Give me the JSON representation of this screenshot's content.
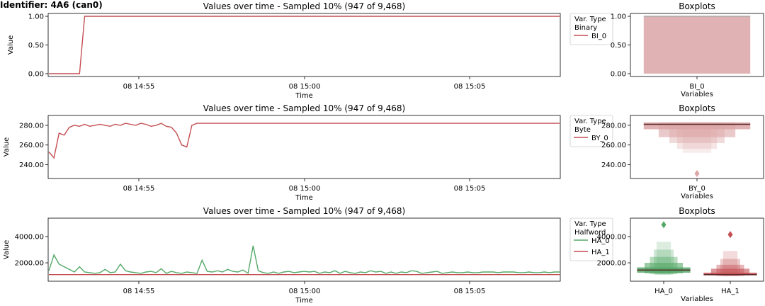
{
  "page_title": "Identifier: 4A6 (can0)",
  "chart_data": [
    {
      "id": "binary",
      "type": "line",
      "title": "Values over time - Sampled 10% (947 of 9,468)",
      "xlabel": "Time",
      "ylabel": "Value",
      "xticks": [
        "08 14:55",
        "08 15:00",
        "08 15:05"
      ],
      "yticks": [
        "0.00",
        "0.50",
        "1.00"
      ],
      "ylim": [
        -0.05,
        1.05
      ],
      "legend_title": "Var. Type\nBinary",
      "series": [
        {
          "name": "BI_0",
          "color": "#c44e52",
          "values": [
            0,
            0,
            0,
            0,
            0,
            0,
            0,
            1,
            1,
            1,
            1,
            1,
            1,
            1,
            1,
            1,
            1,
            1,
            1,
            1,
            1,
            1,
            1,
            1,
            1,
            1,
            1,
            1,
            1,
            1,
            1,
            1,
            1,
            1,
            1,
            1,
            1,
            1,
            1,
            1,
            1,
            1,
            1,
            1,
            1,
            1,
            1,
            1,
            1,
            1,
            1,
            1,
            1,
            1,
            1,
            1,
            1,
            1,
            1,
            1,
            1,
            1,
            1,
            1,
            1,
            1,
            1,
            1,
            1,
            1,
            1,
            1,
            1,
            1,
            1,
            1,
            1,
            1,
            1,
            1,
            1,
            1,
            1,
            1,
            1,
            1,
            1,
            1,
            1,
            1,
            1,
            1,
            1,
            1,
            1,
            1,
            1,
            1,
            1,
            1,
            1
          ]
        }
      ],
      "boxplot": {
        "title": "Boxplots",
        "xlabel": "Variables",
        "yticks": [
          "0.00",
          "0.50",
          "1.00"
        ],
        "items": [
          {
            "name": "BI_0",
            "color": "#dca5a6",
            "median": 1,
            "levels": [
              [
                0,
                1
              ]
            ],
            "outliers": []
          }
        ]
      }
    },
    {
      "id": "byte",
      "type": "line",
      "title": "Values over time - Sampled 10% (947 of 9,468)",
      "xlabel": "Time",
      "ylabel": "Value",
      "xticks": [
        "08 14:55",
        "08 15:00",
        "08 15:05"
      ],
      "yticks": [
        "240.00",
        "260.00",
        "280.00"
      ],
      "ylim": [
        226,
        290
      ],
      "legend_title": "Var. Type\nByte",
      "series": [
        {
          "name": "BY_0",
          "color": "#c44e52",
          "values": [
            253,
            247,
            272,
            270,
            278,
            280,
            279,
            281,
            279,
            280,
            281,
            280,
            279,
            281,
            280,
            282,
            281,
            280,
            282,
            281,
            279,
            280,
            282,
            279,
            278,
            272,
            260,
            258,
            280,
            282,
            282,
            282,
            282,
            282,
            282,
            282,
            282,
            282,
            282,
            282,
            282,
            282,
            282,
            282,
            282,
            282,
            282,
            282,
            282,
            282,
            282,
            282,
            282,
            282,
            282,
            282,
            282,
            282,
            282,
            282,
            282,
            282,
            282,
            282,
            282,
            282,
            282,
            282,
            282,
            282,
            282,
            282,
            282,
            282,
            282,
            282,
            282,
            282,
            282,
            282,
            282,
            282,
            282,
            282,
            282,
            282,
            282,
            282,
            282,
            282,
            282,
            282,
            282,
            282,
            282,
            282,
            282,
            282,
            282,
            282,
            282
          ]
        }
      ],
      "boxplot": {
        "title": "Boxplots",
        "xlabel": "Variables",
        "yticks": [
          "240.00",
          "260.00",
          "280.00"
        ],
        "items": [
          {
            "name": "BY_0",
            "color": "#dca5a6",
            "median": 281,
            "levels": [
              [
                276,
                283
              ],
              [
                268,
                283
              ],
              [
                262,
                283
              ],
              [
                256,
                283
              ],
              [
                252,
                283
              ]
            ],
            "outliers": [
              231
            ]
          }
        ]
      }
    },
    {
      "id": "halfword",
      "type": "line",
      "title": "Values over time - Sampled 10% (947 of 9,468)",
      "xlabel": "Time",
      "ylabel": "Value",
      "xticks": [
        "08 14:55",
        "08 15:00",
        "08 15:05"
      ],
      "yticks": [
        "2000.00",
        "4000.00"
      ],
      "ylim": [
        600,
        5400
      ],
      "legend_title": "Var. Type\nHalfword",
      "series": [
        {
          "name": "HA_0",
          "color": "#55a868",
          "values": [
            1400,
            2600,
            1900,
            1700,
            1500,
            1300,
            1700,
            1300,
            1250,
            1200,
            1250,
            1500,
            1250,
            1300,
            1900,
            1400,
            1300,
            1250,
            1200,
            1300,
            1350,
            1250,
            1550,
            1200,
            1350,
            1250,
            1200,
            1300,
            1250,
            1200,
            2200,
            1350,
            1300,
            1400,
            1300,
            1500,
            1350,
            1300,
            1450,
            1200,
            3300,
            1400,
            1250,
            1200,
            1300,
            1200,
            1300,
            1350,
            1250,
            1300,
            1350,
            1300,
            1350,
            1200,
            1300,
            1250,
            1400,
            1200,
            1350,
            1250,
            1200,
            1300,
            1250,
            1400,
            1300,
            1350,
            1200,
            1300,
            1200,
            1300,
            1250,
            1400,
            1350,
            1200,
            1250,
            1300,
            1350,
            1200,
            1250,
            1300,
            1250,
            1250,
            1300,
            1250,
            1250,
            1300,
            1300,
            1300,
            1250,
            1300,
            1300,
            1300,
            1250,
            1250,
            1300,
            1250,
            1250,
            1300,
            1250,
            1300,
            1300
          ]
        },
        {
          "name": "HA_1",
          "color": "#c44e52",
          "values": [
            1100,
            1100,
            1100,
            1100,
            1100,
            1100,
            1100,
            1100,
            1100,
            1100,
            1100,
            1100,
            1100,
            1100,
            1100,
            1100,
            1100,
            1100,
            1100,
            1100,
            1100,
            1100,
            1100,
            1100,
            1100,
            1100,
            1100,
            1100,
            1100,
            1100,
            1100,
            1100,
            1100,
            1100,
            1100,
            1100,
            1100,
            1100,
            1100,
            1100,
            1100,
            1100,
            1100,
            1100,
            1100,
            1100,
            1100,
            1100,
            1100,
            1100,
            1100,
            1100,
            1100,
            1100,
            1100,
            1100,
            1100,
            1100,
            1100,
            1100,
            1100,
            1100,
            1100,
            1100,
            1100,
            1100,
            1100,
            1100,
            1100,
            1100,
            1100,
            1100,
            1100,
            1100,
            1100,
            1100,
            1100,
            1100,
            1100,
            1100,
            1100,
            1100,
            1100,
            1100,
            1100,
            1100,
            1100,
            1100,
            1100,
            1100,
            1100,
            1100,
            1100,
            1100,
            1100,
            1100,
            1100,
            1100,
            1100,
            1100,
            1100
          ]
        }
      ],
      "boxplot": {
        "title": "Boxplots",
        "xlabel": "Variables",
        "yticks": [
          "2000.00",
          "4000.00"
        ],
        "items": [
          {
            "name": "HA_0",
            "color": "#55a868",
            "median": 1450,
            "levels": [
              [
                1250,
                1650
              ],
              [
                1200,
                2000
              ],
              [
                1150,
                2450
              ],
              [
                1100,
                3000
              ],
              [
                1100,
                3600
              ]
            ],
            "outliers": [
              4900
            ]
          },
          {
            "name": "HA_1",
            "color": "#c44e52",
            "median": 1100,
            "levels": [
              [
                1050,
                1250
              ],
              [
                1050,
                1550
              ],
              [
                1000,
                1850
              ],
              [
                1000,
                2300
              ],
              [
                1000,
                2900
              ]
            ],
            "outliers": [
              4150
            ]
          }
        ]
      }
    }
  ]
}
